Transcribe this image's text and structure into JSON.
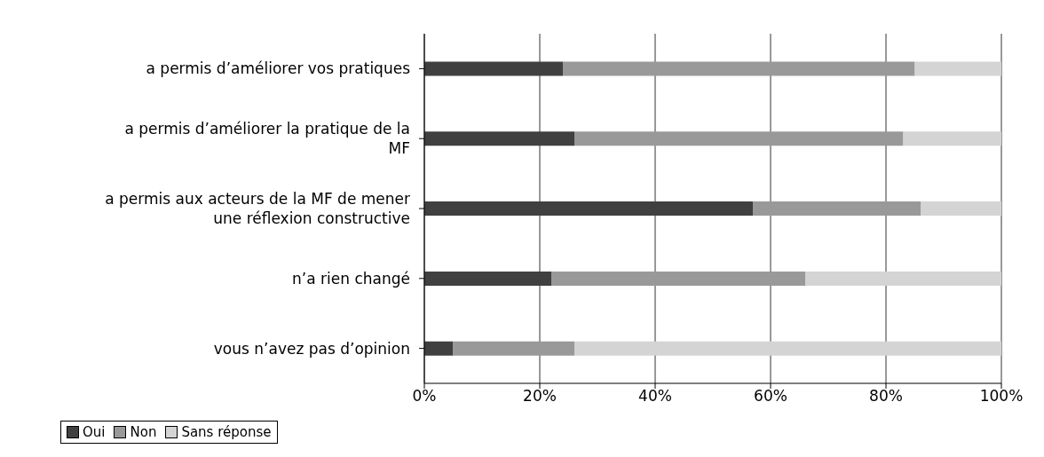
{
  "chart_data": {
    "type": "bar",
    "orientation": "horizontal",
    "stacked": true,
    "categories": [
      "a permis d’améliorer vos pratiques",
      "a permis d’améliorer la pratique de la MF",
      "a permis aux acteurs de la MF de mener une réflexion constructive",
      "n’a rien changé",
      "vous n’avez pas d’opinion"
    ],
    "series": [
      {
        "name": "Oui",
        "color": "#404040",
        "values": [
          24,
          26,
          57,
          22,
          5
        ]
      },
      {
        "name": "Non",
        "color": "#999999",
        "values": [
          61,
          57,
          29,
          44,
          21
        ]
      },
      {
        "name": "Sans réponse",
        "color": "#d4d4d4",
        "values": [
          15,
          17,
          14,
          34,
          74
        ]
      }
    ],
    "xlim": [
      0,
      100
    ],
    "xticks": [
      {
        "value": 0,
        "label": "0%"
      },
      {
        "value": 20,
        "label": "20%"
      },
      {
        "value": 40,
        "label": "40%"
      },
      {
        "value": 60,
        "label": "60%"
      },
      {
        "value": 80,
        "label": "80%"
      },
      {
        "value": 100,
        "label": "100%"
      }
    ],
    "grid": "x",
    "legend": "bottom left"
  }
}
